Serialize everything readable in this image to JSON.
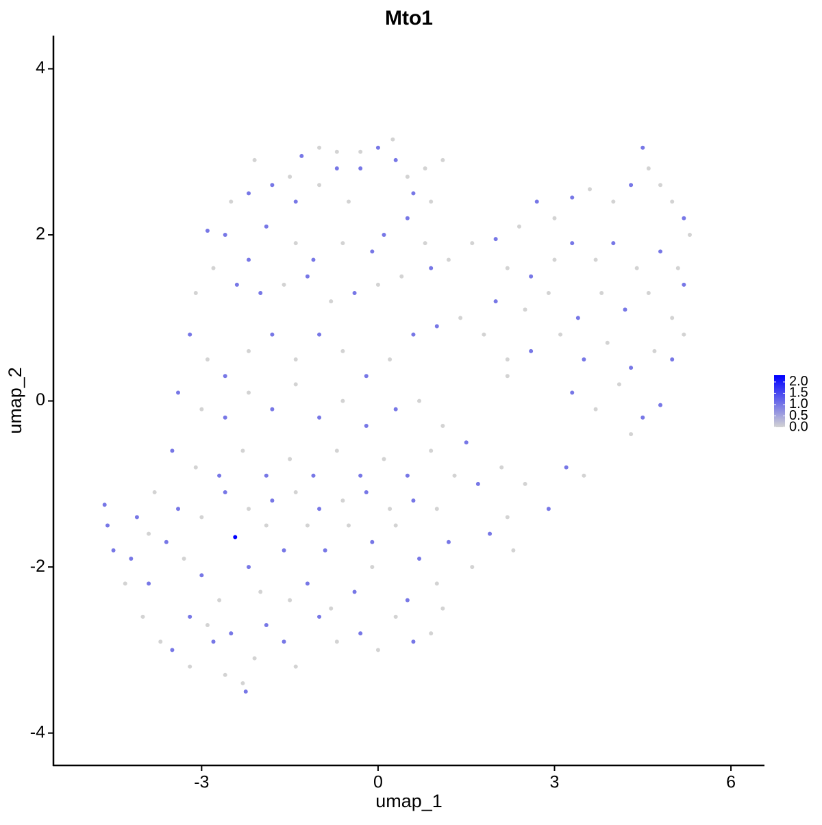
{
  "chart_data": {
    "type": "scatter",
    "title": "Mto1",
    "x_label": "umap_1",
    "y_label": "umap_2",
    "xlim": [
      -5.52,
      6.57
    ],
    "ylim": [
      -4.39,
      4.4
    ],
    "xticks": [
      -3,
      0,
      3,
      6
    ],
    "yticks": [
      -4,
      -2,
      0,
      2,
      4
    ],
    "color_low": "#d3d3d3",
    "color_high": "#0000ff",
    "color_lim": [
      0,
      2.3
    ],
    "color_ticks": [
      {
        "value": 0,
        "label": "0.0"
      },
      {
        "value": 0.5,
        "label": "0.5"
      },
      {
        "value": 1,
        "label": "1.0"
      },
      {
        "value": 1.5,
        "label": "1.5"
      },
      {
        "value": 2,
        "label": "2.0"
      }
    ],
    "x": [
      -2.2,
      -2.1,
      -1.5,
      -1.3,
      -1.0,
      -0.7,
      -0.3,
      0.0,
      0.25,
      0.3,
      0.8,
      1.1,
      -0.7,
      -0.3,
      0.5,
      -2.5,
      -1.8,
      -1.4,
      -1.0,
      -0.5,
      0.6,
      0.9,
      -2.9,
      -2.6,
      -2.2,
      -1.9,
      -1.4,
      -1.1,
      -0.6,
      -0.1,
      0.1,
      0.5,
      0.8,
      -3.1,
      -2.8,
      -2.4,
      -2.0,
      -1.6,
      -1.2,
      -0.8,
      -0.4,
      0.0,
      0.4,
      0.9,
      1.2,
      -3.2,
      -2.9,
      -2.6,
      -2.2,
      -1.8,
      -1.4,
      -1.0,
      -0.6,
      -0.2,
      0.2,
      0.6,
      1.0,
      1.4,
      1.8,
      2.2,
      -3.4,
      -3.0,
      -2.6,
      -2.2,
      -1.8,
      -1.4,
      -1.0,
      -0.6,
      -0.2,
      0.3,
      0.7,
      1.1,
      1.5,
      -3.5,
      -3.1,
      -2.7,
      -2.3,
      -1.9,
      -1.5,
      -1.1,
      -0.7,
      -0.3,
      0.1,
      0.5,
      0.9,
      1.3,
      1.7,
      2.1,
      1.6,
      2.0,
      2.4,
      2.7,
      3.0,
      3.3,
      3.6,
      4.0,
      4.3,
      4.5,
      4.6,
      4.8,
      5.0,
      5.2,
      5.3,
      2.2,
      2.6,
      3.0,
      3.3,
      3.7,
      4.0,
      4.4,
      4.8,
      5.1,
      2.0,
      2.5,
      2.9,
      3.4,
      3.8,
      4.2,
      4.6,
      5.0,
      5.2,
      2.2,
      2.6,
      3.1,
      3.5,
      3.9,
      4.3,
      4.7,
      5.0,
      5.2,
      3.3,
      3.7,
      4.1,
      4.5,
      4.8,
      4.3,
      2.5,
      2.9,
      3.2,
      3.5,
      2.2,
      1.9,
      1.6,
      2.3,
      1.2,
      1.0,
      0.7,
      1.1,
      0.9,
      0.5,
      0.6,
      0.3,
      -0.1,
      -0.4,
      -0.8,
      -1.2,
      0.0,
      -0.3,
      -0.7,
      -1.0,
      -1.5,
      -1.6,
      -1.4,
      -1.9,
      -2.1,
      -2.3,
      -2.25,
      -2.6,
      -2.8,
      -3.2,
      -3.5,
      -3.7,
      -4.0,
      -3.9,
      -4.3,
      -4.2,
      -4.5,
      -4.65,
      -4.6,
      -4.1,
      -3.9,
      -3.6,
      -3.3,
      -3.0,
      -2.7,
      -2.43,
      -2.2,
      -1.9,
      -1.6,
      -1.2,
      -0.9,
      -0.5,
      -0.1,
      0.3,
      -3.8,
      -3.4,
      -3.0,
      -2.6,
      -2.2,
      -1.8,
      -1.4,
      -1.0,
      -0.6,
      -0.2,
      0.2,
      0.6,
      1.0,
      -3.2,
      -2.9,
      -2.5,
      -2.0
    ],
    "y": [
      2.5,
      2.9,
      2.7,
      2.95,
      3.05,
      3.0,
      3.0,
      3.05,
      3.15,
      2.9,
      2.8,
      2.9,
      2.8,
      2.8,
      2.7,
      2.4,
      2.6,
      2.4,
      2.6,
      2.4,
      2.5,
      2.4,
      2.05,
      2.0,
      1.7,
      2.1,
      1.9,
      1.7,
      1.9,
      1.8,
      2.0,
      2.2,
      1.9,
      1.3,
      1.6,
      1.4,
      1.3,
      1.4,
      1.5,
      1.2,
      1.3,
      1.4,
      1.5,
      1.6,
      1.7,
      0.8,
      0.5,
      0.3,
      0.6,
      0.8,
      0.5,
      0.8,
      0.6,
      0.3,
      0.5,
      0.8,
      0.9,
      1.0,
      0.8,
      0.5,
      0.1,
      -0.1,
      -0.2,
      0.1,
      -0.1,
      0.2,
      -0.2,
      0.0,
      -0.3,
      -0.1,
      0.0,
      -0.3,
      -0.5,
      -0.6,
      -0.8,
      -0.9,
      -0.6,
      -0.9,
      -0.7,
      -0.9,
      -0.6,
      -0.9,
      -0.7,
      -0.9,
      -0.6,
      -0.9,
      -1.0,
      -0.8,
      1.9,
      1.95,
      2.1,
      2.4,
      2.2,
      2.45,
      2.55,
      2.4,
      2.6,
      3.05,
      2.8,
      2.6,
      2.4,
      2.2,
      2.0,
      1.6,
      1.5,
      1.7,
      1.9,
      1.7,
      1.9,
      1.6,
      1.8,
      1.6,
      1.2,
      1.1,
      1.3,
      1.0,
      1.3,
      1.1,
      1.3,
      1.0,
      1.4,
      0.3,
      0.6,
      0.8,
      0.5,
      0.7,
      0.4,
      0.6,
      0.5,
      0.8,
      0.1,
      -0.1,
      0.2,
      -0.2,
      -0.05,
      -0.4,
      -1.0,
      -1.3,
      -0.8,
      -0.9,
      -1.4,
      -1.6,
      -2.0,
      -1.8,
      -1.7,
      -2.2,
      -1.9,
      -2.5,
      -2.8,
      -2.4,
      -2.9,
      -2.6,
      -2.0,
      -2.3,
      -2.5,
      -2.2,
      -3.0,
      -2.8,
      -2.9,
      -2.6,
      -2.4,
      -2.9,
      -3.2,
      -2.7,
      -3.1,
      -3.4,
      -3.5,
      -3.3,
      -2.9,
      -3.2,
      -3.0,
      -2.9,
      -2.6,
      -2.2,
      -2.2,
      -1.9,
      -1.8,
      -1.25,
      -1.5,
      -1.4,
      -1.6,
      -1.7,
      -1.9,
      -2.1,
      -2.4,
      -1.64,
      -2.0,
      -1.5,
      -1.8,
      -1.5,
      -1.8,
      -1.5,
      -1.7,
      -1.5,
      -1.1,
      -1.3,
      -1.4,
      -1.1,
      -1.3,
      -1.2,
      -1.1,
      -1.3,
      -1.2,
      -1.1,
      -1.3,
      -1.2,
      -1.3,
      -2.6,
      -2.7,
      -2.8,
      -2.3
    ],
    "values": [
      1,
      0,
      0,
      1,
      0,
      0,
      0,
      1,
      0,
      1,
      0,
      0,
      1,
      1,
      0,
      0,
      1,
      1,
      0,
      0,
      1,
      0,
      1,
      1,
      1,
      1,
      0,
      1,
      0,
      1,
      1,
      1,
      0,
      0,
      0,
      1,
      1,
      0,
      1,
      0,
      1,
      0,
      0,
      1,
      0,
      1,
      0,
      1,
      0,
      1,
      0,
      1,
      0,
      1,
      0,
      1,
      1,
      0,
      0,
      0,
      1,
      0,
      1,
      0,
      1,
      0,
      1,
      0,
      1,
      1,
      0,
      0,
      1,
      1,
      0,
      1,
      0,
      1,
      0,
      1,
      0,
      1,
      0,
      1,
      0,
      0,
      1,
      0,
      0,
      1,
      0,
      1,
      0,
      1,
      0,
      0,
      1,
      1,
      0,
      0,
      0,
      1,
      0,
      0,
      1,
      0,
      1,
      0,
      1,
      0,
      1,
      0,
      1,
      0,
      0,
      1,
      0,
      1,
      0,
      0,
      1,
      0,
      1,
      0,
      1,
      0,
      1,
      0,
      1,
      0,
      1,
      0,
      0,
      1,
      1,
      0,
      0,
      1,
      1,
      0,
      0,
      1,
      0,
      0,
      1,
      0,
      1,
      0,
      0,
      1,
      1,
      0,
      0,
      1,
      0,
      1,
      0,
      1,
      0,
      1,
      0,
      1,
      0,
      1,
      0,
      0,
      1,
      0,
      1,
      0,
      1,
      0,
      0,
      1,
      0,
      1,
      1,
      1,
      1,
      1,
      0,
      1,
      0,
      1,
      0,
      2.3,
      1,
      0,
      1,
      0,
      1,
      0,
      1,
      0,
      0,
      1,
      0,
      1,
      0,
      1,
      0,
      1,
      0,
      1,
      0,
      1,
      0,
      1,
      0,
      1,
      0
    ]
  }
}
